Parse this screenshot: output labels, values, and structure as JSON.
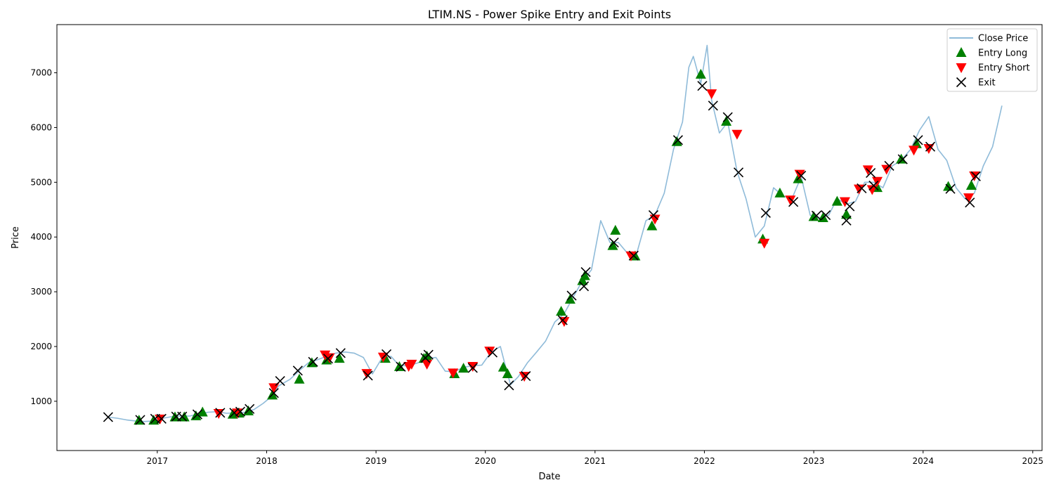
{
  "chart_data": {
    "type": "line",
    "title": "LTIM.NS - Power Spike Entry and Exit Points",
    "xlabel": "Date",
    "ylabel": "Price",
    "xlim": [
      "2016-02-01",
      "2025-02-01"
    ],
    "ylim": [
      100,
      7880
    ],
    "x_ticks": [
      "2017",
      "2018",
      "2019",
      "2020",
      "2021",
      "2022",
      "2023",
      "2024",
      "2025"
    ],
    "y_ticks": [
      1000,
      2000,
      3000,
      4000,
      5000,
      6000,
      7000
    ],
    "grid": false,
    "legend_position": "top-right",
    "legend": [
      "Close Price",
      "Entry Long",
      "Entry Short",
      "Exit"
    ],
    "colors": {
      "close": "#1f77b4",
      "long": "#008000",
      "short": "#ff0000",
      "exit": "#000000"
    },
    "series": [
      {
        "name": "Close Price",
        "x": [
          "2016-07-21",
          "2016-08-20",
          "2016-09-20",
          "2016-10-20",
          "2016-11-20",
          "2016-12-20",
          "2017-01-20",
          "2017-02-20",
          "2017-03-20",
          "2017-04-20",
          "2017-05-20",
          "2017-06-20",
          "2017-07-20",
          "2017-08-20",
          "2017-09-20",
          "2017-10-20",
          "2017-11-20",
          "2017-12-20",
          "2018-01-20",
          "2018-02-10",
          "2018-03-20",
          "2018-04-20",
          "2018-05-20",
          "2018-06-20",
          "2018-07-20",
          "2018-08-20",
          "2018-09-20",
          "2018-10-20",
          "2018-11-20",
          "2018-12-20",
          "2019-01-20",
          "2019-02-20",
          "2019-03-20",
          "2019-04-20",
          "2019-05-20",
          "2019-06-20",
          "2019-07-20",
          "2019-08-20",
          "2019-09-20",
          "2019-10-20",
          "2019-11-20",
          "2019-12-20",
          "2020-01-20",
          "2020-02-20",
          "2020-03-10",
          "2020-03-25",
          "2020-04-20",
          "2020-05-20",
          "2020-06-20",
          "2020-07-20",
          "2020-08-20",
          "2020-09-20",
          "2020-10-20",
          "2020-11-20",
          "2020-12-20",
          "2021-01-20",
          "2021-02-20",
          "2021-03-20",
          "2021-04-20",
          "2021-05-20",
          "2021-06-20",
          "2021-07-20",
          "2021-08-20",
          "2021-09-20",
          "2021-10-20",
          "2021-11-10",
          "2021-11-25",
          "2021-12-20",
          "2022-01-10",
          "2022-01-25",
          "2022-02-20",
          "2022-03-20",
          "2022-04-20",
          "2022-05-20",
          "2022-06-20",
          "2022-07-20",
          "2022-08-20",
          "2022-09-20",
          "2022-10-20",
          "2022-11-20",
          "2022-12-20",
          "2023-01-20",
          "2023-02-20",
          "2023-03-20",
          "2023-04-20",
          "2023-05-20",
          "2023-06-20",
          "2023-07-20",
          "2023-08-20",
          "2023-09-20",
          "2023-10-20",
          "2023-11-20",
          "2023-12-20",
          "2024-01-20",
          "2024-02-20",
          "2024-03-20",
          "2024-04-20",
          "2024-05-20",
          "2024-06-20",
          "2024-07-20",
          "2024-08-20",
          "2024-09-20"
        ],
        "values": [
          710,
          690,
          660,
          640,
          630,
          640,
          690,
          720,
          730,
          730,
          770,
          800,
          810,
          780,
          790,
          800,
          850,
          960,
          1100,
          1280,
          1400,
          1560,
          1700,
          1760,
          1820,
          1880,
          1900,
          1880,
          1800,
          1500,
          1780,
          1820,
          1650,
          1650,
          1700,
          1780,
          1800,
          1550,
          1540,
          1620,
          1650,
          1660,
          1900,
          2000,
          1600,
          1300,
          1450,
          1700,
          1900,
          2100,
          2450,
          2600,
          2900,
          3200,
          3400,
          4300,
          3900,
          3900,
          3700,
          3700,
          4300,
          4400,
          4800,
          5600,
          6100,
          7100,
          7300,
          6800,
          7500,
          6500,
          5900,
          6100,
          5200,
          4700,
          4000,
          4200,
          4900,
          4750,
          4700,
          5100,
          4400,
          4350,
          4400,
          4700,
          4600,
          4650,
          5000,
          5000,
          4900,
          5300,
          5400,
          5600,
          5950,
          6200,
          5600,
          5400,
          4900,
          4700,
          4800,
          5300,
          5650,
          6400
        ]
      },
      {
        "name": "Entry Long",
        "x": [
          "2016-11-01",
          "2016-12-20",
          "2017-03-01",
          "2017-04-01",
          "2017-05-10",
          "2017-06-01",
          "2017-09-10",
          "2017-10-01",
          "2017-11-01",
          "2018-01-20",
          "2018-04-20",
          "2018-06-01",
          "2018-07-20",
          "2018-09-01",
          "2019-02-01",
          "2019-03-20",
          "2019-06-10",
          "2019-06-20",
          "2019-09-20",
          "2019-10-20",
          "2020-03-01",
          "2020-03-15",
          "2020-09-10",
          "2020-10-10",
          "2020-11-20",
          "2020-11-28",
          "2021-03-01",
          "2021-03-10",
          "2021-05-15",
          "2021-07-10",
          "2021-10-01",
          "2021-12-20",
          "2022-03-15",
          "2022-07-15",
          "2022-09-10",
          "2022-11-10",
          "2023-01-01",
          "2023-02-01",
          "2023-03-20",
          "2023-04-20",
          "2023-08-01",
          "2023-10-20",
          "2023-12-10",
          "2024-03-25",
          "2024-06-10"
        ],
        "values": [
          650,
          650,
          710,
          710,
          730,
          800,
          760,
          780,
          820,
          1110,
          1400,
          1700,
          1750,
          1780,
          1780,
          1630,
          1780,
          1820,
          1500,
          1600,
          1620,
          1500,
          2640,
          2860,
          3200,
          3290,
          3840,
          4120,
          3650,
          4200,
          5740,
          6970,
          6110,
          3960,
          4800,
          5060,
          4370,
          4350,
          4650,
          4410,
          4900,
          5420,
          5700,
          4920,
          4940
        ]
      },
      {
        "name": "Entry Short",
        "x": [
          "2017-01-10",
          "2017-07-25",
          "2017-09-25",
          "2018-01-25",
          "2018-07-15",
          "2018-07-30",
          "2018-12-01",
          "2019-01-25",
          "2019-04-20",
          "2019-04-30",
          "2019-06-20",
          "2019-09-15",
          "2019-11-20",
          "2020-01-15",
          "2020-05-10",
          "2020-09-20",
          "2021-05-01",
          "2021-07-20",
          "2022-01-25",
          "2022-04-20",
          "2022-07-20",
          "2022-10-15",
          "2022-11-15",
          "2023-04-15",
          "2023-06-01",
          "2023-07-01",
          "2023-07-15",
          "2023-08-01",
          "2023-09-01",
          "2023-12-01",
          "2024-01-20",
          "2024-06-01",
          "2024-06-20"
        ],
        "values": [
          680,
          780,
          790,
          1250,
          1850,
          1800,
          1510,
          1810,
          1640,
          1680,
          1680,
          1520,
          1640,
          1920,
          1460,
          2460,
          3660,
          4330,
          6620,
          5880,
          3890,
          4680,
          5150,
          4650,
          4880,
          5230,
          4870,
          5020,
          5240,
          5590,
          5620,
          4720,
          5120
        ]
      },
      {
        "name": "Exit",
        "x": [
          "2016-07-21",
          "2016-11-05",
          "2016-12-25",
          "2017-01-15",
          "2017-03-05",
          "2017-03-25",
          "2017-05-15",
          "2017-07-30",
          "2017-09-15",
          "2017-10-05",
          "2017-11-05",
          "2018-01-25",
          "2018-02-15",
          "2018-04-15",
          "2018-06-05",
          "2018-07-25",
          "2018-09-05",
          "2018-12-05",
          "2019-02-05",
          "2019-03-25",
          "2019-06-15",
          "2019-06-25",
          "2019-11-20",
          "2020-01-25",
          "2020-03-20",
          "2020-05-15",
          "2020-09-15",
          "2020-10-15",
          "2020-11-25",
          "2020-12-01",
          "2021-03-05",
          "2021-05-10",
          "2021-07-15",
          "2021-10-05",
          "2021-12-25",
          "2022-01-30",
          "2022-03-20",
          "2022-04-25",
          "2022-07-25",
          "2022-10-25",
          "2022-11-20",
          "2023-01-10",
          "2023-02-10",
          "2023-04-20",
          "2023-05-01",
          "2023-06-10",
          "2023-07-10",
          "2023-07-20",
          "2023-09-10",
          "2023-10-25",
          "2023-12-15",
          "2024-01-25",
          "2024-04-01",
          "2024-06-05",
          "2024-06-25"
        ],
        "values": [
          710,
          660,
          680,
          680,
          720,
          720,
          760,
          790,
          790,
          810,
          860,
          1150,
          1370,
          1560,
          1720,
          1780,
          1880,
          1470,
          1860,
          1630,
          1790,
          1850,
          1610,
          1890,
          1290,
          1460,
          2480,
          2930,
          3100,
          3360,
          3900,
          3660,
          4400,
          5770,
          6760,
          6400,
          6190,
          5180,
          4440,
          4640,
          5120,
          4390,
          4400,
          4300,
          4560,
          4890,
          5170,
          4940,
          5300,
          5420,
          5770,
          5650,
          4880,
          4630,
          5110
        ]
      }
    ]
  }
}
